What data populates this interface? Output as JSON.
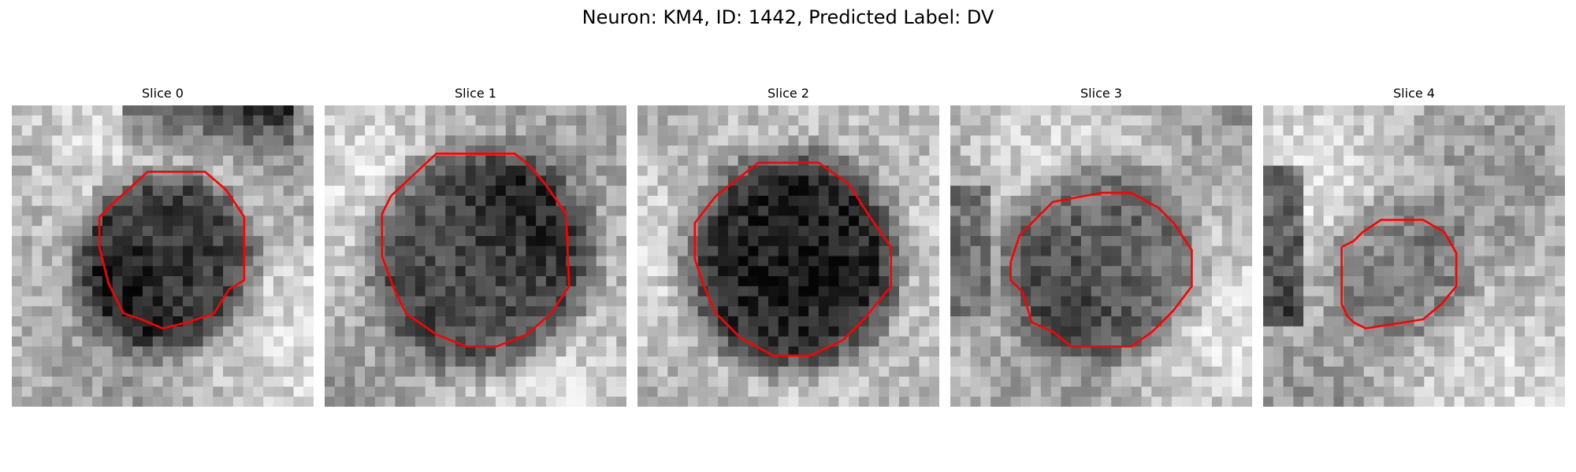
{
  "figure": {
    "title": "Neuron: KM4, ID: 1442, Predicted Label: DV",
    "contour_color": "#ff0000"
  },
  "slices": [
    {
      "title": "Slice 0",
      "darkness": 0.85
    },
    {
      "title": "Slice 1",
      "darkness": 0.75
    },
    {
      "title": "Slice 2",
      "darkness": 0.85
    },
    {
      "title": "Slice 3",
      "darkness": 0.55
    },
    {
      "title": "Slice 4",
      "darkness": 0.35
    }
  ]
}
